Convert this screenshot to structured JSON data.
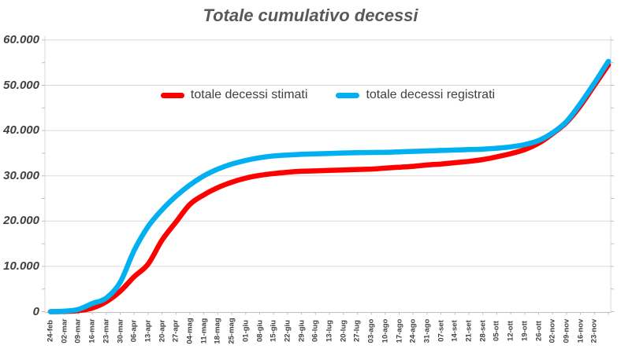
{
  "title": "Totale cumulativo decessi",
  "legend": [
    {
      "label": "totale decessi stimati",
      "color": "#FF0000"
    },
    {
      "label": "totale decessi registrati",
      "color": "#00B0F0"
    }
  ],
  "colors": {
    "stimati_line": "#FF0000",
    "registrati_line": "#00B0F0",
    "title_text": "#595959",
    "axis_text": "#404040",
    "gridline": "#D9D9D9",
    "axis_line": "#BFBFBF"
  },
  "chart_data": {
    "type": "line",
    "title": "Totale cumulativo decessi",
    "xlabel": "",
    "ylabel": "",
    "grid": true,
    "legend_position": "top-inside",
    "y_axis": {
      "min": 0,
      "max": 60000,
      "step": 10000,
      "tick_labels": [
        "0",
        "10.000",
        "20.000",
        "30.000",
        "40.000",
        "50.000",
        "60.000"
      ]
    },
    "categories": [
      "24-feb",
      "02-mar",
      "09-mar",
      "16-mar",
      "23-mar",
      "30-mar",
      "06-apr",
      "13-apr",
      "20-apr",
      "27-apr",
      "04-mag",
      "11-mag",
      "18-mag",
      "25-mag",
      "01-giu",
      "08-giu",
      "15-giu",
      "22-giu",
      "29-giu",
      "06-lug",
      "13-lug",
      "20-lug",
      "27-lug",
      "03-ago",
      "10-ago",
      "17-ago",
      "24-ago",
      "31-ago",
      "07-set",
      "14-set",
      "21-set",
      "28-set",
      "05-ott",
      "12-ott",
      "19-ott",
      "26-ott",
      "02-nov",
      "09-nov",
      "16-nov",
      "23-nov",
      ""
    ],
    "series": [
      {
        "name": "totale decessi stimati",
        "color": "#FF0000",
        "values": [
          0,
          50,
          200,
          800,
          2200,
          4500,
          7700,
          10500,
          15800,
          19800,
          23700,
          25800,
          27400,
          28600,
          29500,
          30100,
          30500,
          30800,
          31000,
          31100,
          31200,
          31300,
          31400,
          31500,
          31700,
          31900,
          32100,
          32400,
          32600,
          32900,
          33200,
          33600,
          34200,
          34900,
          35800,
          37200,
          39300,
          41800,
          45500,
          50000,
          54500
        ]
      },
      {
        "name": "totale decessi registrati",
        "color": "#00B0F0",
        "values": [
          0,
          100,
          500,
          1800,
          3000,
          6500,
          13500,
          18800,
          22500,
          25500,
          28000,
          30000,
          31500,
          32600,
          33400,
          34000,
          34400,
          34600,
          34750,
          34850,
          34950,
          35050,
          35100,
          35150,
          35200,
          35300,
          35400,
          35500,
          35600,
          35700,
          35800,
          35900,
          36100,
          36400,
          36900,
          37800,
          39500,
          42000,
          46000,
          50500,
          55300
        ]
      }
    ]
  }
}
